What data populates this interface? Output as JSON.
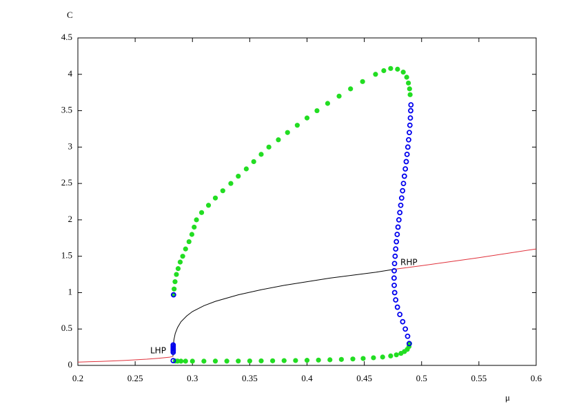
{
  "chart_data": {
    "type": "scatter",
    "xlabel": "μ",
    "ylabel": "C",
    "xlim": [
      0.2,
      0.6
    ],
    "ylim": [
      0,
      4.5
    ],
    "xticks": [
      0.2,
      0.25,
      0.3,
      0.35,
      0.4,
      0.45,
      0.5,
      0.55,
      0.6
    ],
    "yticks": [
      0,
      0.5,
      1,
      1.5,
      2,
      2.5,
      3,
      3.5,
      4,
      4.5
    ],
    "annotations": [
      "LHP",
      "RHP"
    ],
    "series": [
      {
        "style": "line",
        "color": "#e0303a",
        "x": [
          0.2,
          0.22,
          0.24,
          0.26,
          0.27,
          0.28,
          0.283
        ],
        "y": [
          0.045,
          0.055,
          0.068,
          0.085,
          0.097,
          0.112,
          0.125
        ]
      },
      {
        "style": "line",
        "color": "#e0303a",
        "x": [
          0.476,
          0.5,
          0.55,
          0.6
        ],
        "y": [
          1.32,
          1.37,
          1.48,
          1.6
        ]
      },
      {
        "style": "line",
        "color": "#000000",
        "x": [
          0.283,
          0.2832,
          0.2838,
          0.285,
          0.287,
          0.29,
          0.295,
          0.3,
          0.31,
          0.32,
          0.34,
          0.36,
          0.38,
          0.4,
          0.42,
          0.44,
          0.46,
          0.476
        ],
        "y": [
          0.125,
          0.25,
          0.35,
          0.44,
          0.52,
          0.6,
          0.68,
          0.74,
          0.82,
          0.88,
          0.97,
          1.04,
          1.1,
          1.15,
          1.2,
          1.24,
          1.28,
          1.32
        ]
      },
      {
        "style": "filled",
        "color": "#22dd22",
        "x": [
          0.2835,
          0.284,
          0.2848,
          0.286,
          0.2875,
          0.2893,
          0.2915,
          0.294,
          0.297,
          0.2995,
          0.3015,
          0.3035,
          0.308,
          0.314,
          0.32,
          0.3265,
          0.3335,
          0.34,
          0.347,
          0.3535,
          0.36,
          0.3667,
          0.375,
          0.383,
          0.3915,
          0.4,
          0.4087,
          0.418,
          0.428,
          0.438,
          0.4485,
          0.4598,
          0.467,
          0.473,
          0.479,
          0.484,
          0.487,
          0.4885,
          0.4895,
          0.49
        ],
        "y": [
          0.97,
          1.05,
          1.15,
          1.25,
          1.33,
          1.42,
          1.5,
          1.6,
          1.7,
          1.8,
          1.9,
          2.0,
          2.1,
          2.2,
          2.3,
          2.4,
          2.5,
          2.6,
          2.7,
          2.8,
          2.9,
          3.0,
          3.1,
          3.2,
          3.3,
          3.4,
          3.5,
          3.6,
          3.7,
          3.8,
          3.9,
          4.0,
          4.05,
          4.08,
          4.07,
          4.03,
          3.96,
          3.88,
          3.8,
          3.72
        ]
      },
      {
        "style": "filled",
        "color": "#22dd22",
        "x": [
          0.4895,
          0.489,
          0.4875,
          0.485,
          0.482,
          0.478,
          0.473,
          0.466,
          0.458,
          0.449,
          0.44,
          0.43,
          0.42,
          0.41,
          0.4,
          0.39,
          0.38,
          0.37,
          0.36,
          0.35,
          0.34,
          0.33,
          0.32,
          0.31,
          0.3,
          0.294,
          0.29,
          0.287,
          0.285
        ],
        "y": [
          0.3,
          0.26,
          0.22,
          0.19,
          0.165,
          0.145,
          0.13,
          0.115,
          0.105,
          0.095,
          0.088,
          0.082,
          0.077,
          0.073,
          0.07,
          0.067,
          0.065,
          0.063,
          0.062,
          0.061,
          0.06,
          0.059,
          0.059,
          0.058,
          0.058,
          0.058,
          0.058,
          0.059,
          0.06
        ]
      },
      {
        "style": "open",
        "color": "#0000ee",
        "x": [
          0.4907,
          0.4905,
          0.4902,
          0.4898,
          0.4893,
          0.4887,
          0.488,
          0.4873,
          0.4866,
          0.4858,
          0.485,
          0.4842,
          0.4834,
          0.4826,
          0.4818,
          0.481,
          0.4802,
          0.4794,
          0.4787,
          0.478,
          0.4774,
          0.4769,
          0.4764,
          0.4761,
          0.476,
          0.4761,
          0.4765,
          0.4774,
          0.4789,
          0.481,
          0.4835,
          0.4858,
          0.4878,
          0.4892
        ],
        "y": [
          3.58,
          3.5,
          3.4,
          3.3,
          3.2,
          3.1,
          3.0,
          2.9,
          2.8,
          2.7,
          2.6,
          2.5,
          2.4,
          2.3,
          2.2,
          2.1,
          2.0,
          1.9,
          1.8,
          1.7,
          1.6,
          1.5,
          1.4,
          1.3,
          1.2,
          1.1,
          1.0,
          0.9,
          0.8,
          0.7,
          0.6,
          0.5,
          0.4,
          0.3
        ]
      },
      {
        "style": "open",
        "color": "#0000ee",
        "x": [
          0.2832,
          0.2832,
          0.2832,
          0.2832,
          0.2832,
          0.2832,
          0.2832,
          0.2835
        ],
        "y": [
          0.065,
          0.18,
          0.2,
          0.22,
          0.24,
          0.26,
          0.28,
          0.97
        ]
      }
    ]
  }
}
